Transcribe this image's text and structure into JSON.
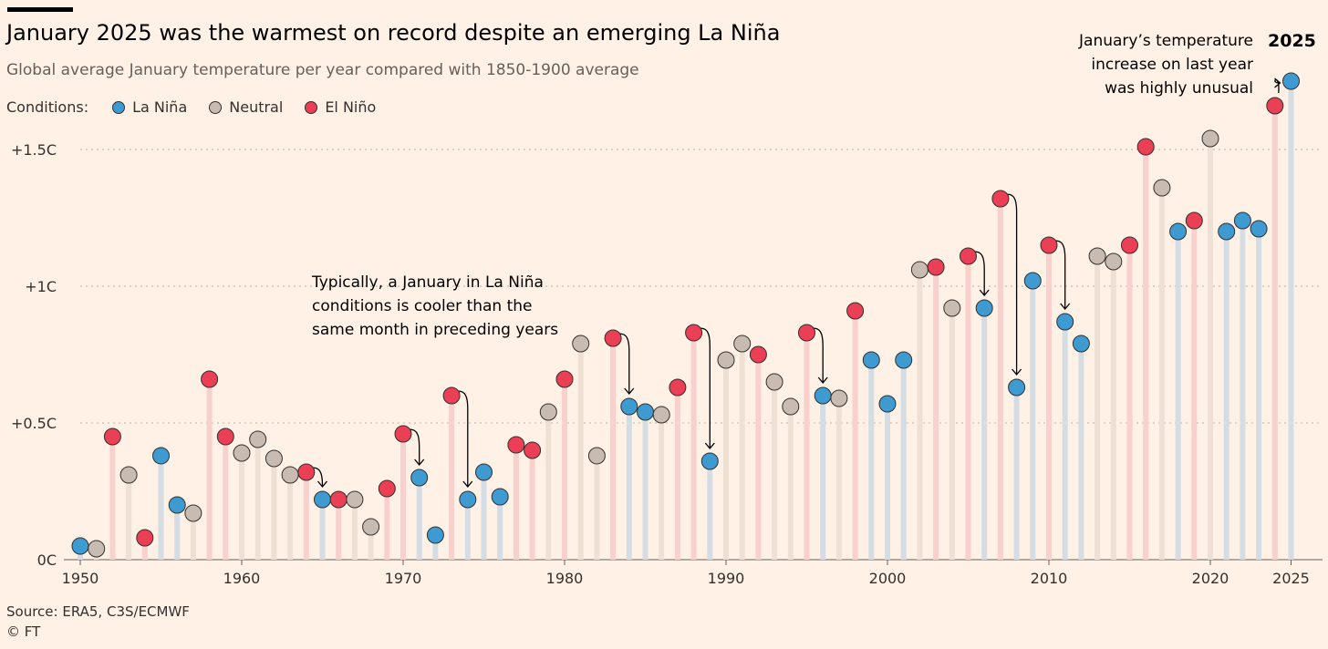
{
  "header": {
    "title": "January 2025 was the warmest on record despite an emerging La Niña",
    "subtitle": "Global average January temperature per year compared with 1850-1900 average"
  },
  "legend": {
    "label": "Conditions:",
    "items": [
      {
        "name": "La Niña",
        "color": "#3d9bd1"
      },
      {
        "name": "Neutral",
        "color": "#c8bcb2"
      },
      {
        "name": "El Niño",
        "color": "#ea3f55"
      }
    ]
  },
  "footer": {
    "source": "Source: ERA5, C3S/ECMWF",
    "copyright": "© FT"
  },
  "annotations": {
    "typical": [
      "Typically, a January in La Niña",
      "conditions is cooler than the",
      "same month in preceding years"
    ],
    "unusual": [
      "January’s temperature",
      "increase on last year",
      "was highly unusual"
    ],
    "highlight_year": "2025"
  },
  "chart_data": {
    "type": "scatter",
    "subtype": "lollipop",
    "title": "January 2025 was the warmest on record despite an emerging La Niña",
    "subtitle": "Global average January temperature per year compared with 1850-1900 average",
    "xlabel": "",
    "ylabel": "",
    "xlim": [
      1950,
      2025
    ],
    "ylim": [
      0,
      1.75
    ],
    "x_ticks": [
      1950,
      1960,
      1970,
      1980,
      1990,
      2000,
      2010,
      2020,
      2025
    ],
    "x_tick_labels": [
      "1950",
      "1960",
      "1970",
      "1980",
      "1990",
      "2000",
      "2010",
      "2020",
      "2025"
    ],
    "y_ticks": [
      0,
      0.5,
      1.0,
      1.5
    ],
    "y_tick_labels": [
      "0C",
      "+0.5C",
      "+1C",
      "+1.5C"
    ],
    "grid": "horizontal dotted",
    "colors": {
      "L": "#3d9bd1",
      "N": "#c8bcb2",
      "E": "#ea3f55"
    },
    "stem_colors": {
      "L": "#d3dde3",
      "N": "#efe0d4",
      "E": "#f9d0cc"
    },
    "x": [
      1950,
      1951,
      1952,
      1953,
      1954,
      1955,
      1956,
      1957,
      1958,
      1959,
      1960,
      1961,
      1962,
      1963,
      1964,
      1965,
      1966,
      1967,
      1968,
      1969,
      1970,
      1971,
      1972,
      1973,
      1974,
      1975,
      1976,
      1977,
      1978,
      1979,
      1980,
      1981,
      1982,
      1983,
      1984,
      1985,
      1986,
      1987,
      1988,
      1989,
      1990,
      1991,
      1992,
      1993,
      1994,
      1995,
      1996,
      1997,
      1998,
      1999,
      2000,
      2001,
      2002,
      2003,
      2004,
      2005,
      2006,
      2007,
      2008,
      2009,
      2010,
      2011,
      2012,
      2013,
      2014,
      2015,
      2016,
      2017,
      2018,
      2019,
      2020,
      2021,
      2022,
      2023,
      2024,
      2025
    ],
    "values": [
      0.05,
      0.04,
      0.45,
      0.31,
      0.08,
      0.38,
      0.2,
      0.17,
      0.66,
      0.45,
      0.39,
      0.44,
      0.37,
      0.31,
      0.32,
      0.22,
      0.22,
      0.22,
      0.12,
      0.26,
      0.46,
      0.3,
      0.09,
      0.6,
      0.22,
      0.32,
      0.23,
      0.42,
      0.4,
      0.54,
      0.66,
      0.79,
      0.38,
      0.81,
      0.56,
      0.54,
      0.53,
      0.63,
      0.83,
      0.36,
      0.73,
      0.79,
      0.75,
      0.65,
      0.56,
      0.83,
      0.6,
      0.59,
      0.91,
      0.73,
      0.57,
      0.73,
      1.06,
      1.07,
      0.92,
      1.11,
      0.92,
      1.32,
      0.63,
      1.02,
      1.15,
      0.87,
      0.79,
      1.11,
      1.09,
      1.15,
      1.51,
      1.36,
      1.2,
      1.24,
      1.54,
      1.2,
      1.24,
      1.21,
      1.66,
      1.75
    ],
    "conditions": [
      "L",
      "N",
      "E",
      "N",
      "E",
      "L",
      "L",
      "N",
      "E",
      "E",
      "N",
      "N",
      "N",
      "N",
      "E",
      "L",
      "E",
      "N",
      "N",
      "E",
      "E",
      "L",
      "L",
      "E",
      "L",
      "L",
      "L",
      "E",
      "E",
      "N",
      "E",
      "N",
      "N",
      "E",
      "L",
      "L",
      "N",
      "E",
      "E",
      "L",
      "N",
      "N",
      "E",
      "N",
      "N",
      "E",
      "L",
      "N",
      "E",
      "L",
      "L",
      "L",
      "N",
      "E",
      "N",
      "E",
      "L",
      "E",
      "L",
      "L",
      "E",
      "L",
      "L",
      "N",
      "N",
      "E",
      "E",
      "N",
      "L",
      "E",
      "N",
      "L",
      "L",
      "L",
      "E",
      "L"
    ],
    "la_nina_arrows": [
      [
        1964,
        1965
      ],
      [
        1970,
        1971
      ],
      [
        1973,
        1974
      ],
      [
        1983,
        1984
      ],
      [
        1988,
        1989
      ],
      [
        1995,
        1996
      ],
      [
        2005,
        2006
      ],
      [
        2007,
        2008
      ],
      [
        2010,
        2011
      ],
      [
        2024,
        2025
      ]
    ]
  }
}
